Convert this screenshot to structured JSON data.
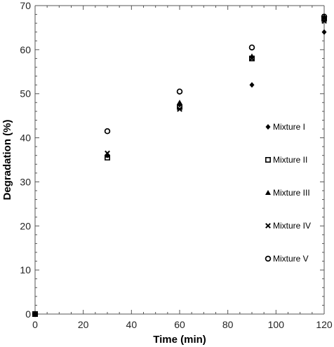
{
  "chart_data": {
    "type": "scatter",
    "title": "",
    "xlabel": "Time (min)",
    "ylabel": "Degradation (%)",
    "xlim": [
      0,
      120
    ],
    "ylim": [
      0,
      70
    ],
    "x_major_ticks": [
      0,
      20,
      40,
      60,
      80,
      100,
      120
    ],
    "x_minor_step": 5,
    "y_major_ticks": [
      0,
      10,
      20,
      30,
      40,
      50,
      60,
      70
    ],
    "y_minor_step": 2,
    "grid": false,
    "legend_position": "right",
    "series": [
      {
        "name": "Mixture I",
        "marker": "diamond-filled",
        "x": [
          0,
          30,
          60,
          90,
          120
        ],
        "y": [
          0,
          36.0,
          47.5,
          52.0,
          64.0
        ]
      },
      {
        "name": "Mixture II",
        "marker": "square-open",
        "x": [
          0,
          30,
          60,
          90,
          120
        ],
        "y": [
          0,
          35.5,
          47.0,
          58.0,
          67.0
        ]
      },
      {
        "name": "Mixture III",
        "marker": "triangle-filled",
        "x": [
          0,
          30,
          60,
          90,
          120
        ],
        "y": [
          0,
          36.0,
          48.0,
          58.5,
          67.5
        ]
      },
      {
        "name": "Mixture IV",
        "marker": "x-cross",
        "x": [
          0,
          30,
          60,
          90,
          120
        ],
        "y": [
          0,
          36.5,
          46.5,
          58.0,
          66.5
        ]
      },
      {
        "name": "Mixture V",
        "marker": "circle-open",
        "x": [
          0,
          30,
          60,
          90,
          120
        ],
        "y": [
          0,
          41.5,
          50.5,
          60.5,
          67.5
        ]
      }
    ],
    "colors": {
      "marker": "#000000",
      "axis": "#555555"
    }
  }
}
